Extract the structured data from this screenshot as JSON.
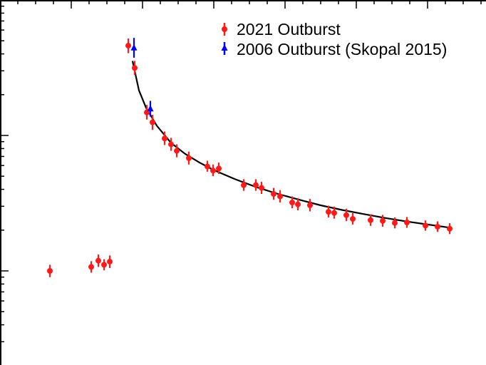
{
  "chart_data": {
    "type": "scatter",
    "title": "",
    "xlabel": "",
    "ylabel": "",
    "y_scale": "log",
    "legend_position": "top-right",
    "grid": false,
    "colors": {
      "series_2021": "#ff1a1a",
      "series_2006": "#0000ff",
      "fit_line": "#000000",
      "axes": "#000000",
      "background": "#ffffff"
    },
    "legend": [
      {
        "label": "2021 Outburst",
        "series": 0
      },
      {
        "label": "2006 Outburst (Skopal 2015)",
        "series": 1
      }
    ],
    "series": [
      {
        "name": "2021 Outburst",
        "marker": "circle",
        "points": [
          {
            "x": 0.7,
            "y": 0.1,
            "yerr": [
              0.01,
              0.011
            ]
          },
          {
            "x": 1.28,
            "y": 0.107,
            "yerr": [
              0.01,
              0.011
            ]
          },
          {
            "x": 1.38,
            "y": 0.119,
            "yerr": [
              0.012,
              0.013
            ]
          },
          {
            "x": 1.46,
            "y": 0.111,
            "yerr": [
              0.01,
              0.011
            ]
          },
          {
            "x": 1.54,
            "y": 0.117,
            "yerr": [
              0.012,
              0.013
            ]
          },
          {
            "x": 1.8,
            "y": 4.6,
            "yerr": [
              0.55,
              0.6
            ]
          },
          {
            "x": 1.89,
            "y": 3.15,
            "yerr": [
              0.35,
              0.4
            ]
          },
          {
            "x": 2.06,
            "y": 1.48,
            "yerr": [
              0.17,
              0.2
            ]
          },
          {
            "x": 2.14,
            "y": 1.25,
            "yerr": [
              0.15,
              0.17
            ]
          },
          {
            "x": 2.31,
            "y": 0.95,
            "yerr": [
              0.1,
              0.12
            ]
          },
          {
            "x": 2.4,
            "y": 0.86,
            "yerr": [
              0.09,
              0.1
            ]
          },
          {
            "x": 2.48,
            "y": 0.77,
            "yerr": [
              0.08,
              0.09
            ]
          },
          {
            "x": 2.65,
            "y": 0.68,
            "yerr": [
              0.07,
              0.08
            ]
          },
          {
            "x": 2.91,
            "y": 0.59,
            "yerr": [
              0.05,
              0.06
            ]
          },
          {
            "x": 2.99,
            "y": 0.55,
            "yerr": [
              0.05,
              0.06
            ]
          },
          {
            "x": 3.07,
            "y": 0.57,
            "yerr": [
              0.05,
              0.06
            ]
          },
          {
            "x": 3.42,
            "y": 0.43,
            "yerr": [
              0.04,
              0.045
            ]
          },
          {
            "x": 3.59,
            "y": 0.43,
            "yerr": [
              0.04,
              0.045
            ]
          },
          {
            "x": 3.67,
            "y": 0.41,
            "yerr": [
              0.04,
              0.045
            ]
          },
          {
            "x": 3.84,
            "y": 0.37,
            "yerr": [
              0.035,
              0.04
            ]
          },
          {
            "x": 3.93,
            "y": 0.355,
            "yerr": [
              0.035,
              0.04
            ]
          },
          {
            "x": 4.1,
            "y": 0.32,
            "yerr": [
              0.03,
              0.035
            ]
          },
          {
            "x": 4.18,
            "y": 0.31,
            "yerr": [
              0.03,
              0.035
            ]
          },
          {
            "x": 4.35,
            "y": 0.305,
            "yerr": [
              0.03,
              0.035
            ]
          },
          {
            "x": 4.61,
            "y": 0.273,
            "yerr": [
              0.025,
              0.03
            ]
          },
          {
            "x": 4.69,
            "y": 0.268,
            "yerr": [
              0.025,
              0.03
            ]
          },
          {
            "x": 4.86,
            "y": 0.258,
            "yerr": [
              0.025,
              0.03
            ]
          },
          {
            "x": 4.95,
            "y": 0.242,
            "yerr": [
              0.022,
              0.025
            ]
          },
          {
            "x": 5.2,
            "y": 0.237,
            "yerr": [
              0.022,
              0.025
            ]
          },
          {
            "x": 5.37,
            "y": 0.234,
            "yerr": [
              0.022,
              0.025
            ]
          },
          {
            "x": 5.54,
            "y": 0.226,
            "yerr": [
              0.02,
              0.022
            ]
          },
          {
            "x": 5.71,
            "y": 0.228,
            "yerr": [
              0.02,
              0.022
            ]
          },
          {
            "x": 5.97,
            "y": 0.216,
            "yerr": [
              0.018,
              0.02
            ]
          },
          {
            "x": 6.14,
            "y": 0.212,
            "yerr": [
              0.018,
              0.02
            ]
          },
          {
            "x": 6.31,
            "y": 0.205,
            "yerr": [
              0.018,
              0.02
            ]
          }
        ]
      },
      {
        "name": "2006 Outburst (Skopal 2015)",
        "marker": "triangle",
        "points": [
          {
            "x": 1.88,
            "y": 4.45,
            "yerr": [
              0.7,
              0.8
            ]
          },
          {
            "x": 2.11,
            "y": 1.58,
            "yerr": [
              0.2,
              0.22
            ]
          }
        ]
      },
      {
        "name": "",
        "type": "line",
        "x": [
          1.86,
          1.95,
          2.05,
          2.2,
          2.4,
          2.6,
          2.8,
          3.0,
          3.3,
          3.6,
          3.9,
          4.2,
          4.5,
          4.8,
          5.1,
          5.4,
          5.7,
          6.0,
          6.3
        ],
        "y": [
          3.55,
          2.15,
          1.6,
          1.18,
          0.88,
          0.73,
          0.63,
          0.555,
          0.475,
          0.415,
          0.37,
          0.335,
          0.305,
          0.282,
          0.263,
          0.246,
          0.232,
          0.22,
          0.209
        ]
      }
    ]
  }
}
